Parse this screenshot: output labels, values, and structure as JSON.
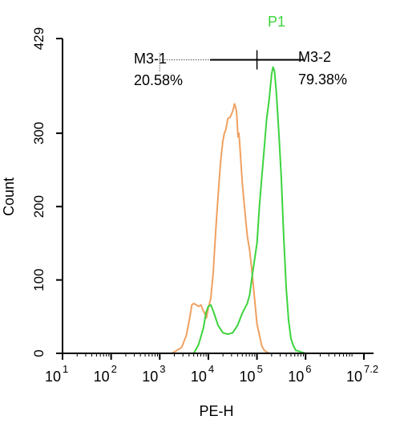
{
  "chart_data": {
    "type": "line",
    "title": "P1",
    "xlabel": "PE-H",
    "ylabel": "Count",
    "xscale": "log",
    "xlim_log10": [
      1,
      7.2
    ],
    "ylim": [
      0,
      429
    ],
    "x_ticks": [
      {
        "base": "10",
        "exp": "1",
        "log10": 1
      },
      {
        "base": "10",
        "exp": "2",
        "log10": 2
      },
      {
        "base": "10",
        "exp": "3",
        "log10": 3
      },
      {
        "base": "10",
        "exp": "4",
        "log10": 4
      },
      {
        "base": "10",
        "exp": "5",
        "log10": 5
      },
      {
        "base": "10",
        "exp": "6",
        "log10": 6
      },
      {
        "base": "10",
        "exp": "7.2",
        "log10": 7.2
      }
    ],
    "y_ticks": [
      0,
      100,
      200,
      300,
      429
    ],
    "grid": false,
    "colors": {
      "title": "#3cd43c",
      "control": "#f0a060",
      "sample": "#3cd43c",
      "axis": "#000000",
      "gate": "#000000"
    },
    "series": [
      {
        "color": "#f0a060",
        "x_log10": [
          3.25,
          3.45,
          3.55,
          3.62,
          3.66,
          3.7,
          3.75,
          3.8,
          3.85,
          3.88,
          3.92,
          3.96,
          4.0,
          4.05,
          4.1,
          4.15,
          4.2,
          4.25,
          4.3,
          4.33,
          4.36,
          4.4,
          4.45,
          4.5,
          4.54,
          4.58,
          4.61,
          4.63,
          4.65,
          4.68,
          4.7,
          4.75,
          4.8,
          4.85,
          4.9,
          5.0,
          5.1,
          5.15,
          5.2,
          5.25
        ],
        "y": [
          0,
          8,
          25,
          50,
          66,
          68,
          66,
          64,
          66,
          60,
          55,
          48,
          62,
          75,
          110,
          165,
          215,
          260,
          290,
          300,
          305,
          320,
          322,
          330,
          340,
          330,
          295,
          300,
          280,
          250,
          230,
          195,
          160,
          140,
          110,
          40,
          10,
          4,
          2,
          0
        ]
      },
      {
        "color": "#3cd43c",
        "x_log10": [
          3.7,
          3.8,
          3.9,
          3.95,
          4.0,
          4.05,
          4.1,
          4.2,
          4.3,
          4.4,
          4.5,
          4.6,
          4.7,
          4.8,
          4.85,
          4.9,
          5.0,
          5.05,
          5.1,
          5.15,
          5.2,
          5.25,
          5.3,
          5.33,
          5.36,
          5.4,
          5.45,
          5.5,
          5.55,
          5.6,
          5.65,
          5.7,
          5.75,
          5.8,
          5.9,
          6.0,
          6.1
        ],
        "y": [
          0,
          12,
          35,
          55,
          64,
          66,
          58,
          38,
          28,
          26,
          28,
          38,
          55,
          68,
          80,
          105,
          150,
          200,
          240,
          280,
          320,
          345,
          380,
          390,
          385,
          355,
          300,
          240,
          160,
          90,
          45,
          20,
          10,
          4,
          2,
          0,
          0
        ]
      }
    ],
    "gates": [
      {
        "label": "M3-1",
        "percent": "20.58%",
        "from_log10": 3.0,
        "to_log10": 5.0,
        "level": 400
      },
      {
        "label": "M3-2",
        "percent": "79.38%",
        "from_log10": 5.0,
        "to_log10": 6.0,
        "level": 400
      }
    ]
  }
}
